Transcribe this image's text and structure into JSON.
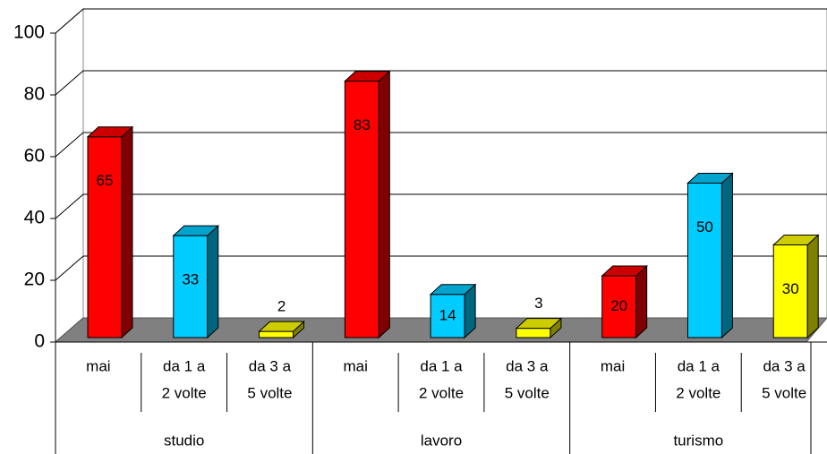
{
  "chart_data": {
    "type": "bar",
    "categories": [
      "studio",
      "lavoro",
      "turismo"
    ],
    "series": [
      {
        "name": [
          "mai"
        ],
        "color": "#ff0000",
        "values": [
          65,
          83,
          20
        ]
      },
      {
        "name": [
          "da 1 a",
          "2 volte"
        ],
        "color": "#00ccff",
        "values": [
          33,
          14,
          50
        ]
      },
      {
        "name": [
          "da 3 a",
          "5 volte"
        ],
        "color": "#ffff00",
        "values": [
          2,
          3,
          30
        ]
      }
    ],
    "ylim": [
      0,
      100
    ],
    "yticks": [
      0,
      20,
      40,
      60,
      80,
      100
    ],
    "grid": true
  }
}
